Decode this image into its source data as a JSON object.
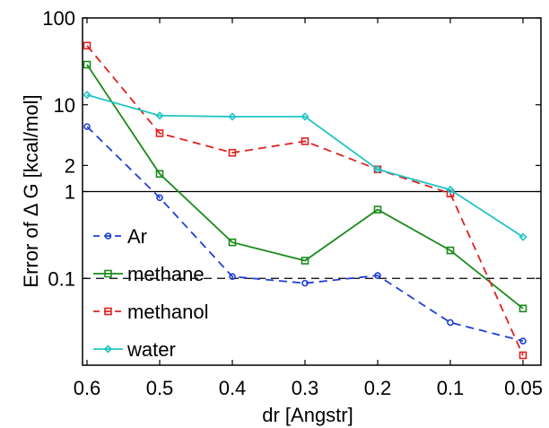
{
  "chart_data": {
    "type": "line",
    "title": "",
    "xlabel": "dr [Angstr]",
    "ylabel": "Error of Δ G [kcal/mol]",
    "yscale": "log",
    "ylim": [
      0.01,
      100
    ],
    "x": [
      0.6,
      0.5,
      0.4,
      0.3,
      0.2,
      0.1,
      0.05
    ],
    "x_tick_labels": [
      "0.6",
      "0.5",
      "0.4",
      "0.3",
      "0.2",
      "0.1",
      "0.05"
    ],
    "y_ticks": [
      0.1,
      1,
      2,
      10,
      100
    ],
    "y_tick_labels": [
      "0.1",
      "1",
      "2",
      "10",
      "100"
    ],
    "reference_lines": [
      {
        "y": 1,
        "style": "solid",
        "color": "#000000"
      },
      {
        "y": 0.1,
        "style": "dashed",
        "color": "#000000"
      }
    ],
    "legend_position": "left",
    "grid": false,
    "series": [
      {
        "name": "Ar",
        "color": "#1f3fd6",
        "style": "dashed",
        "marker": "circle",
        "values": [
          5.6,
          0.85,
          0.105,
          0.088,
          0.108,
          0.031,
          0.019
        ]
      },
      {
        "name": "methane",
        "color": "#1a8a1a",
        "style": "solid",
        "marker": "square",
        "values": [
          29,
          1.6,
          0.26,
          0.16,
          0.62,
          0.21,
          0.045
        ]
      },
      {
        "name": "methanol",
        "color": "#e02020",
        "style": "dashed",
        "marker": "square",
        "values": [
          48,
          4.7,
          2.8,
          3.8,
          1.8,
          0.95,
          0.013
        ]
      },
      {
        "name": "water",
        "color": "#22c4c4",
        "style": "solid",
        "marker": "diamond",
        "values": [
          13,
          7.5,
          7.3,
          7.3,
          1.8,
          1.05,
          0.3
        ]
      }
    ]
  }
}
